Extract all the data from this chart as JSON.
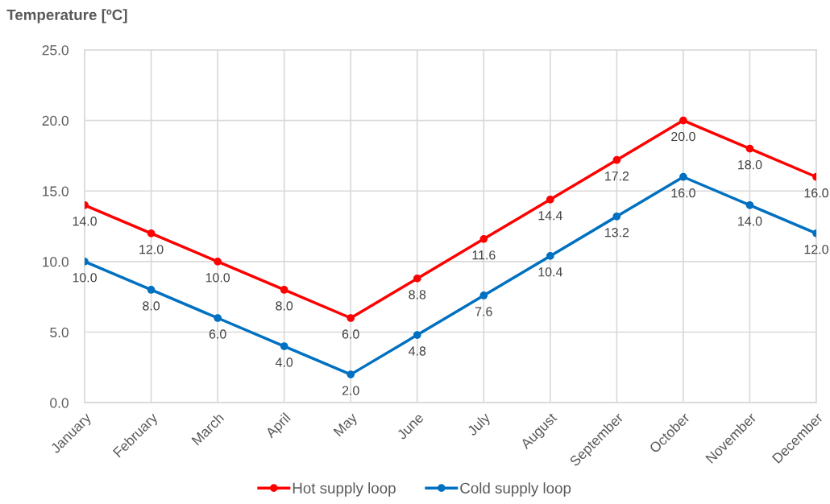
{
  "chart_data": {
    "type": "line",
    "ylabel": "Temperature [ºC]",
    "categories": [
      "January",
      "February",
      "March",
      "April",
      "May",
      "June",
      "July",
      "August",
      "September",
      "October",
      "November",
      "December"
    ],
    "series": [
      {
        "name": "Hot supply loop",
        "color": "#ff0000",
        "values": [
          14.0,
          12.0,
          10.0,
          8.0,
          6.0,
          8.8,
          11.6,
          14.4,
          17.2,
          20.0,
          18.0,
          16.0
        ],
        "value_labels": [
          "14.0",
          "12.0",
          "10.0",
          "8.0",
          "6.0",
          "8.8",
          "11.6",
          "14.4",
          "17.2",
          "20.0",
          "18.0",
          "16.0"
        ]
      },
      {
        "name": "Cold supply loop",
        "color": "#0070c0",
        "values": [
          10.0,
          8.0,
          6.0,
          4.0,
          2.0,
          4.8,
          7.6,
          10.4,
          13.2,
          16.0,
          14.0,
          12.0
        ],
        "value_labels": [
          "10.0",
          "8.0",
          "6.0",
          "4.0",
          "2.0",
          "4.8",
          "7.6",
          "10.4",
          "13.2",
          "16.0",
          "14.0",
          "12.0"
        ]
      }
    ],
    "ylim": [
      0,
      25
    ],
    "yticks": [
      {
        "value": 0,
        "label": "0.0"
      },
      {
        "value": 5,
        "label": "5.0"
      },
      {
        "value": 10,
        "label": "10.0"
      },
      {
        "value": 15,
        "label": "15.0"
      },
      {
        "value": 20,
        "label": "20.0"
      },
      {
        "value": 25,
        "label": "25.0"
      }
    ],
    "grid": true,
    "legend": "bottom",
    "marker": "circle",
    "line_style": "solid"
  }
}
